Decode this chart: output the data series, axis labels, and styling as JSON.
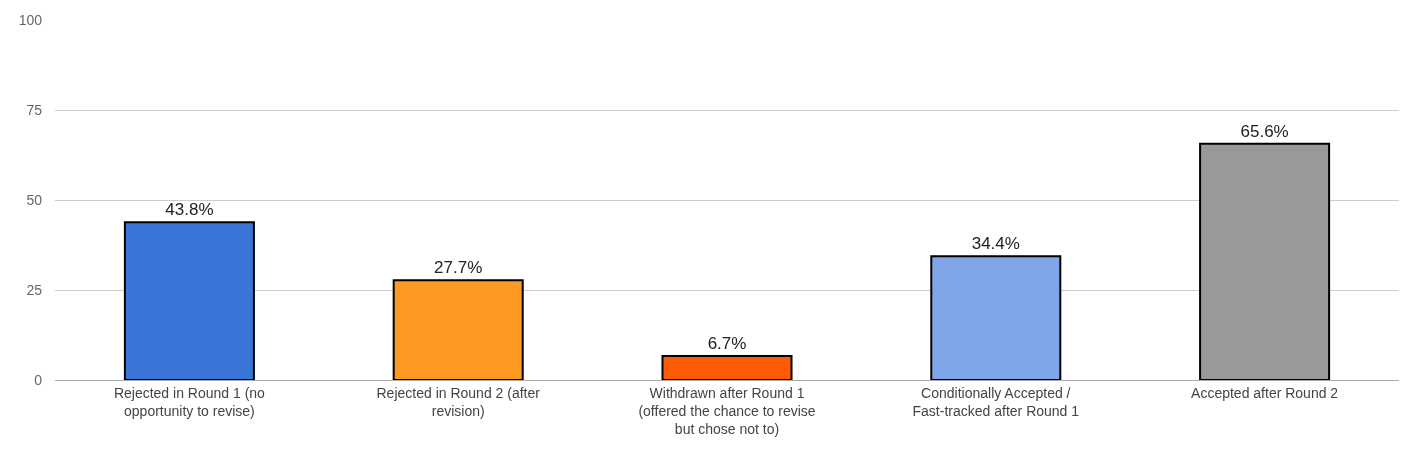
{
  "chart_data": {
    "type": "bar",
    "categories": [
      "Rejected in Round 1 (no opportunity to revise)",
      "Rejected in Round 2 (after revision)",
      "Withdrawn after Round 1 (offered the chance to revise but chose not to)",
      "Conditionally Accepted / Fast-tracked after Round 1",
      "Accepted after Round 2"
    ],
    "values": [
      43.8,
      27.7,
      6.7,
      34.4,
      65.6
    ],
    "colors": [
      "#3a76d8",
      "#fe9a22",
      "#ff5a05",
      "#7ea6e8",
      "#999999"
    ],
    "value_labels": [
      "43.8%",
      "27.7%",
      "6.7%",
      "34.4%",
      "65.6%"
    ],
    "ylim": [
      0,
      100
    ],
    "yticks": [
      0,
      25,
      50,
      75,
      100
    ],
    "grid": "y",
    "legend": false
  }
}
